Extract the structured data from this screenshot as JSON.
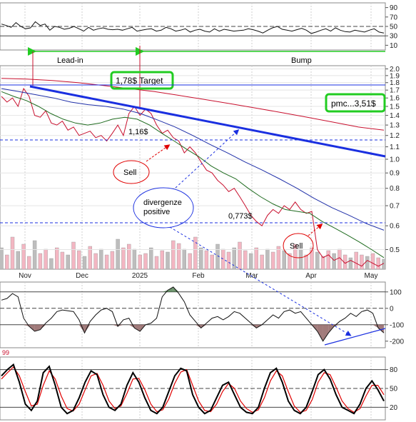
{
  "chart_data": {
    "type": "line",
    "x_axis": {
      "months": [
        "Nov",
        "Dec",
        "2025",
        "Feb",
        "Mar",
        "Apr",
        "May"
      ]
    },
    "panels": [
      {
        "name": "top-oscillator",
        "yticks": [
          "90",
          "70",
          "50",
          "30",
          "10"
        ],
        "reference_lines": [
          50,
          30
        ],
        "series": [
          {
            "values": [
              55,
              52,
              48,
              58,
              50,
              45,
              47,
              60,
              52,
              55,
              42,
              50,
              48,
              44,
              46,
              50,
              45,
              40,
              48,
              42,
              45,
              47,
              44,
              43,
              44,
              42,
              45,
              48,
              40,
              42,
              44,
              45,
              40,
              42,
              48,
              45,
              40,
              42,
              45,
              38,
              42,
              44,
              40,
              38,
              45,
              40,
              44,
              42,
              40,
              41,
              42,
              45,
              43,
              40,
              36,
              42,
              47,
              50,
              44,
              42,
              40,
              43,
              46,
              42,
              35,
              38,
              42,
              45,
              40,
              47,
              42,
              39,
              38,
              42,
              40,
              38,
              42,
              45,
              38,
              36
            ]
          }
        ]
      },
      {
        "name": "price",
        "scale": "log",
        "yticks": [
          "2.0",
          "1.9",
          "1.8",
          "1.7",
          "1.6",
          "1.5",
          "1.4",
          "1.3",
          "1.2",
          "1.1",
          "1.0",
          "0.9",
          "0.8",
          "0.7",
          "0.6",
          "0.5"
        ],
        "ylim": [
          0.43,
          2.05
        ],
        "series": [
          {
            "name": "price",
            "values": [
              1.62,
              1.55,
              1.6,
              1.5,
              1.72,
              1.62,
              1.4,
              1.38,
              1.45,
              1.32,
              1.3,
              1.34,
              1.25,
              1.28,
              1.2,
              1.22,
              1.24,
              1.18,
              1.2,
              1.15,
              1.22,
              1.3,
              1.2,
              1.42,
              1.5,
              1.4,
              1.47,
              1.42,
              1.3,
              1.22,
              1.25,
              1.18,
              1.15,
              1.05,
              1.1,
              1.05,
              0.98,
              0.92,
              0.9,
              0.85,
              0.82,
              0.78,
              0.8,
              0.75,
              0.7,
              0.65,
              0.62,
              0.6,
              0.65,
              0.68,
              0.66,
              0.7,
              0.68,
              0.72,
              0.68,
              0.66,
              0.67,
              0.5,
              0.47,
              0.48,
              0.46,
              0.47,
              0.45,
              0.46,
              0.45,
              0.44,
              0.46,
              0.45,
              0.44,
              0.45
            ]
          },
          {
            "name": "ma-short",
            "values": [
              1.68,
              1.62,
              1.57,
              1.5,
              1.42,
              1.36,
              1.32,
              1.3,
              1.32,
              1.36,
              1.38,
              1.36,
              1.3,
              1.22,
              1.15,
              1.08,
              1.02,
              0.95,
              0.9,
              0.86,
              0.8,
              0.75,
              0.71,
              0.68,
              0.67,
              0.66,
              0.62,
              0.59,
              0.56,
              0.53,
              0.5,
              0.47
            ]
          },
          {
            "name": "ma-mid",
            "values": [
              1.72,
              1.68,
              1.64,
              1.6,
              1.55,
              1.52,
              1.5,
              1.47,
              1.42,
              1.35,
              1.28,
              1.2,
              1.12,
              1.05,
              0.98,
              0.92,
              0.86,
              0.8,
              0.74,
              0.69,
              0.65,
              0.61,
              0.58
            ]
          },
          {
            "name": "ma-long",
            "values": [
              1.86,
              1.85,
              1.83,
              1.8,
              1.76,
              1.72,
              1.68,
              1.63,
              1.58,
              1.53,
              1.48,
              1.43,
              1.38,
              1.33,
              1.28,
              1.25
            ]
          }
        ]
      },
      {
        "name": "cci",
        "yticks": [
          "100",
          "0",
          "-100",
          "-200"
        ],
        "reference_lines": [
          100,
          0,
          -100
        ],
        "series": [
          {
            "values": [
              50,
              60,
              90,
              70,
              -60,
              -110,
              -140,
              -130,
              -90,
              -60,
              -20,
              -10,
              -15,
              -20,
              -70,
              -150,
              -80,
              -40,
              -10,
              0,
              -20,
              -110,
              -70,
              -60,
              -120,
              -140,
              -100,
              -90,
              -60,
              70,
              110,
              130,
              90,
              40,
              -40,
              -80,
              -120,
              -90,
              -60,
              -50,
              -70,
              -50,
              -20,
              -30,
              -60,
              -90,
              -120,
              -100,
              -70,
              -40,
              -60,
              -20,
              -10,
              -30,
              -20,
              -60,
              -100,
              -140,
              -200,
              -150,
              -110,
              -80,
              -60,
              -30,
              -50,
              -20,
              -10,
              -30,
              -120,
              -150
            ]
          }
        ]
      },
      {
        "name": "stochastic",
        "label": "99",
        "yticks": [
          "80",
          "50",
          "20"
        ],
        "reference_lines": [
          80,
          50,
          20
        ],
        "series": [
          {
            "name": "%K",
            "values": [
              70,
              80,
              88,
              60,
              25,
              15,
              30,
              75,
              85,
              55,
              20,
              10,
              15,
              35,
              60,
              78,
              72,
              40,
              20,
              15,
              25,
              55,
              75,
              60,
              35,
              15,
              10,
              20,
              45,
              70,
              82,
              78,
              40,
              20,
              10,
              15,
              35,
              55,
              60,
              40,
              20,
              12,
              10,
              20,
              50,
              75,
              82,
              60,
              30,
              15,
              10,
              20,
              45,
              72,
              80,
              65,
              40,
              20,
              15,
              10,
              25,
              50,
              62,
              48,
              30
            ]
          },
          {
            "name": "%D",
            "values": [
              65,
              75,
              84,
              70,
              45,
              22,
              25,
              55,
              78,
              65,
              38,
              18,
              14,
              25,
              48,
              70,
              74,
              55,
              30,
              18,
              22,
              42,
              65,
              66,
              48,
              25,
              13,
              16,
              33,
              58,
              76,
              80,
              55,
              30,
              15,
              13,
              25,
              45,
              58,
              50,
              30,
              18,
              12,
              16,
              35,
              62,
              78,
              70,
              45,
              22,
              12,
              15,
              32,
              60,
              75,
              72,
              52,
              30,
              18,
              12,
              18,
              38,
              55,
              55,
              40
            ]
          }
        ]
      }
    ],
    "annotations": {
      "lead_in": "Lead-in",
      "bump": "Bump",
      "target": "1,78$ Target",
      "pmc": "pmc...3,51$",
      "price_116": "1,16$",
      "price_0773": "0,773$",
      "sell_1": "Sell",
      "sell_2": "Sell",
      "divergence": "divergenze positive"
    },
    "colors": {
      "price": "#c8102e",
      "ma_short": "#1f6b1f",
      "ma_mid": "#1f2fa8",
      "ma_long": "#c8102e",
      "trendline": "#1a2fe0",
      "box_border": "#22cc22",
      "lead_bump_arrow": "#22cc22"
    }
  }
}
